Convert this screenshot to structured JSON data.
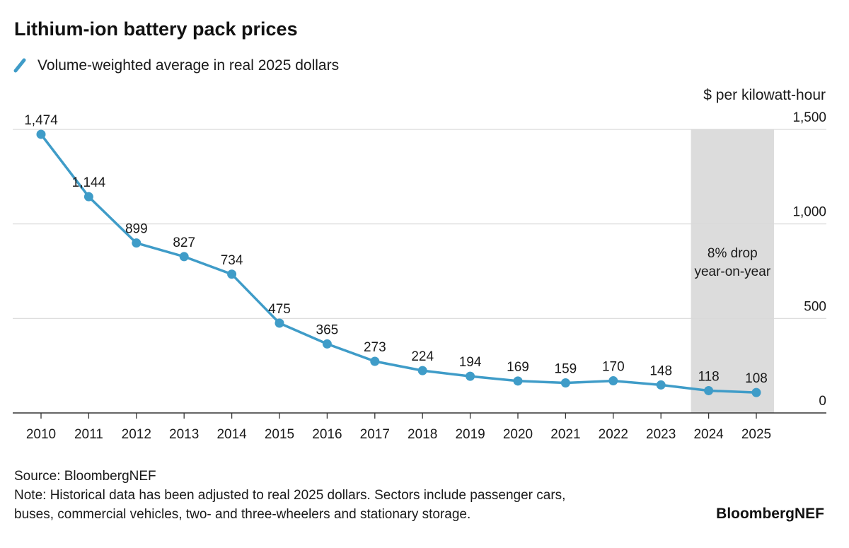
{
  "chart_data": {
    "type": "line",
    "title": "Lithium-ion battery pack prices",
    "unit_label": "$ per kilowatt-hour",
    "categories": [
      "2010",
      "2011",
      "2012",
      "2013",
      "2014",
      "2015",
      "2016",
      "2017",
      "2018",
      "2019",
      "2020",
      "2021",
      "2022",
      "2023",
      "2024",
      "2025"
    ],
    "series": [
      {
        "name": "Volume-weighted average in real 2025 dollars",
        "values": [
          1474,
          1144,
          899,
          827,
          734,
          475,
          365,
          273,
          224,
          194,
          169,
          159,
          170,
          148,
          118,
          108
        ],
        "labels": [
          "1,474",
          "1,144",
          "899",
          "827",
          "734",
          "475",
          "365",
          "273",
          "224",
          "194",
          "169",
          "159",
          "170",
          "148",
          "118",
          "108"
        ]
      }
    ],
    "ylim": [
      0,
      1500
    ],
    "yticks": [
      0,
      500,
      1000,
      1500
    ],
    "ytick_labels": [
      "0",
      "500",
      "1,000",
      "1,500"
    ],
    "y_axis_side": "right",
    "grid": true,
    "legend_position": "top-left",
    "highlight": {
      "from": "2024",
      "to": "2025",
      "annotation_line1": "8% drop",
      "annotation_line2": "year-on-year"
    },
    "source": "Source: BloombergNEF",
    "note_line1": "Note: Historical data has been adjusted to real 2025 dollars. Sectors include passenger cars,",
    "note_line2": "buses, commercial vehicles, two- and three-wheelers and stationary storage.",
    "brand": "BloombergNEF"
  },
  "colors": {
    "series_line": "#3f9cc8",
    "gridline": "#d9d9d9",
    "axis": "#333333",
    "highlight_band": "#dcdcdc",
    "text": "#1a1a1a"
  }
}
